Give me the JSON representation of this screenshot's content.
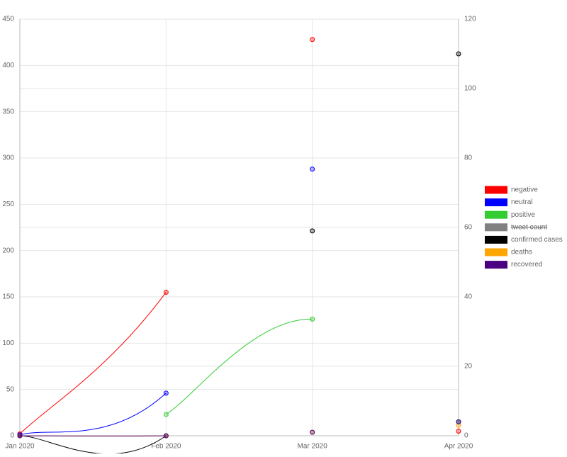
{
  "chart_data": {
    "type": "line",
    "categories": [
      "Jan 2020",
      "Feb 2020",
      "Mar 2020",
      "Apr 2020"
    ],
    "ylim": [
      0,
      450
    ],
    "yticks": [
      0,
      50,
      100,
      150,
      200,
      250,
      300,
      350,
      400,
      450
    ],
    "y2lim": [
      0,
      120
    ],
    "y2ticks": [
      0,
      20,
      40,
      60,
      80,
      100,
      120
    ],
    "grid": true,
    "legend": "right",
    "series": [
      {
        "name": "negative",
        "color": "#ff0000",
        "values": [
          2,
          155,
          428,
          5
        ]
      },
      {
        "name": "neutral",
        "color": "#0000ff",
        "values": [
          1,
          46,
          288,
          15
        ]
      },
      {
        "name": "positive",
        "color": "#33cc33",
        "values": [
          null,
          23,
          126,
          15
        ]
      },
      {
        "name": "tweet count",
        "color": "#808080",
        "hidden": true,
        "values": [
          null,
          null,
          null,
          null
        ]
      },
      {
        "name": "confirmed cases",
        "color": "#000000",
        "axis": "y2",
        "values": [
          0,
          0,
          59,
          110
        ]
      },
      {
        "name": "deaths",
        "color": "#ffa500",
        "axis": "y2",
        "values": [
          0,
          0,
          1,
          3
        ]
      },
      {
        "name": "recovered",
        "color": "#4b0082",
        "axis": "y2",
        "values": [
          0,
          0,
          1,
          4
        ]
      }
    ]
  }
}
